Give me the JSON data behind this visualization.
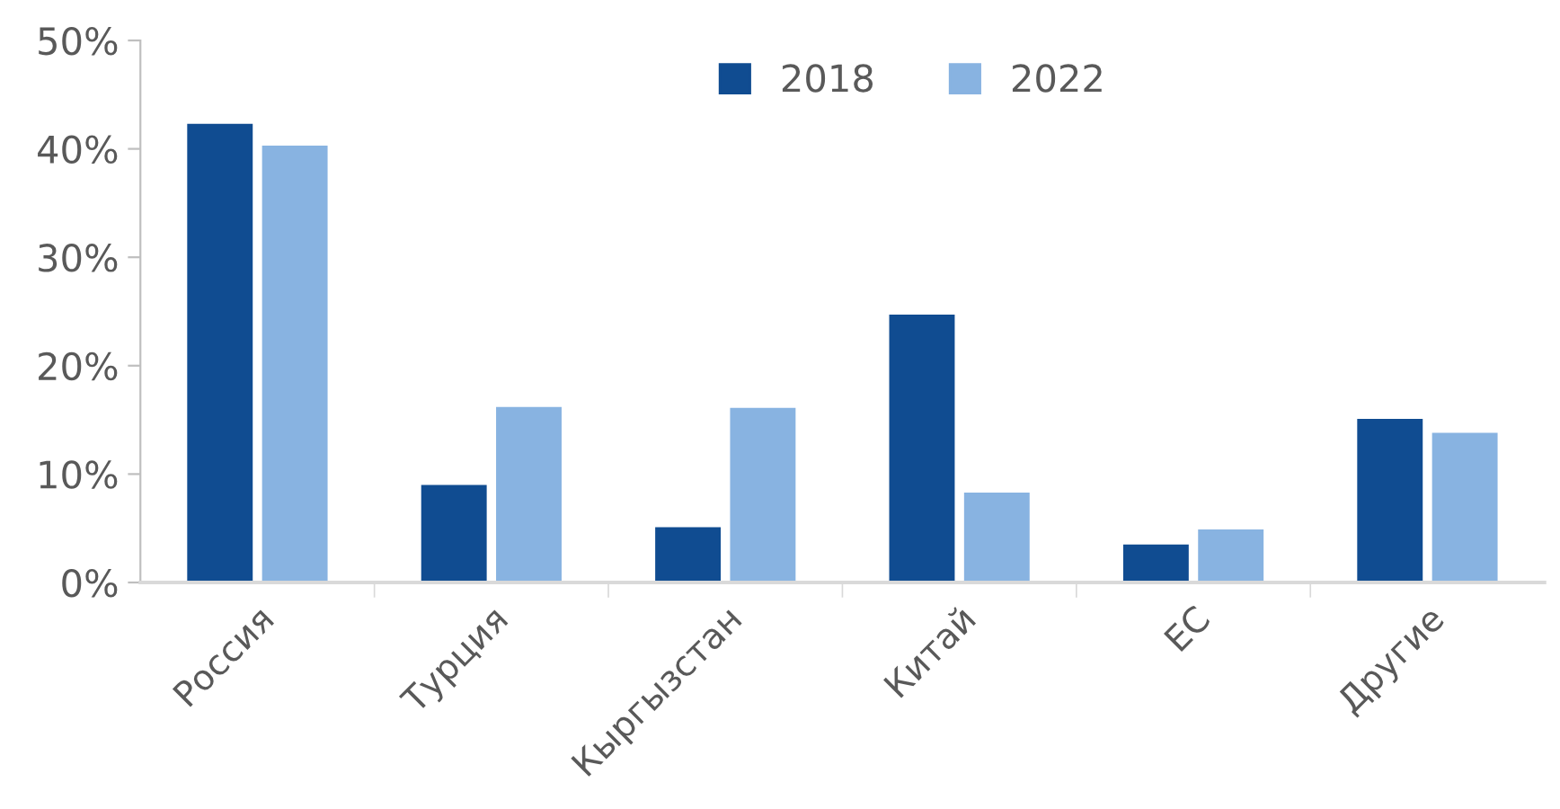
{
  "chart_data": {
    "type": "bar",
    "categories": [
      "Россия",
      "Турция",
      "Кыргызстан",
      "Китай",
      "ЕС",
      "Другие"
    ],
    "series": [
      {
        "name": "2018",
        "color": "#104c91",
        "values": [
          42.3,
          9.0,
          5.1,
          24.7,
          3.5,
          15.1
        ]
      },
      {
        "name": "2022",
        "color": "#88b3e1",
        "values": [
          40.3,
          16.2,
          16.1,
          8.3,
          4.9,
          13.8
        ]
      }
    ],
    "ylim": [
      0,
      50
    ],
    "yticks": [
      {
        "value": 0,
        "label": "0%"
      },
      {
        "value": 10,
        "label": "10%"
      },
      {
        "value": 20,
        "label": "20%"
      },
      {
        "value": 30,
        "label": "30%"
      },
      {
        "value": 40,
        "label": "40%"
      },
      {
        "value": 50,
        "label": "50%"
      }
    ],
    "grid": false,
    "legend": "top"
  }
}
